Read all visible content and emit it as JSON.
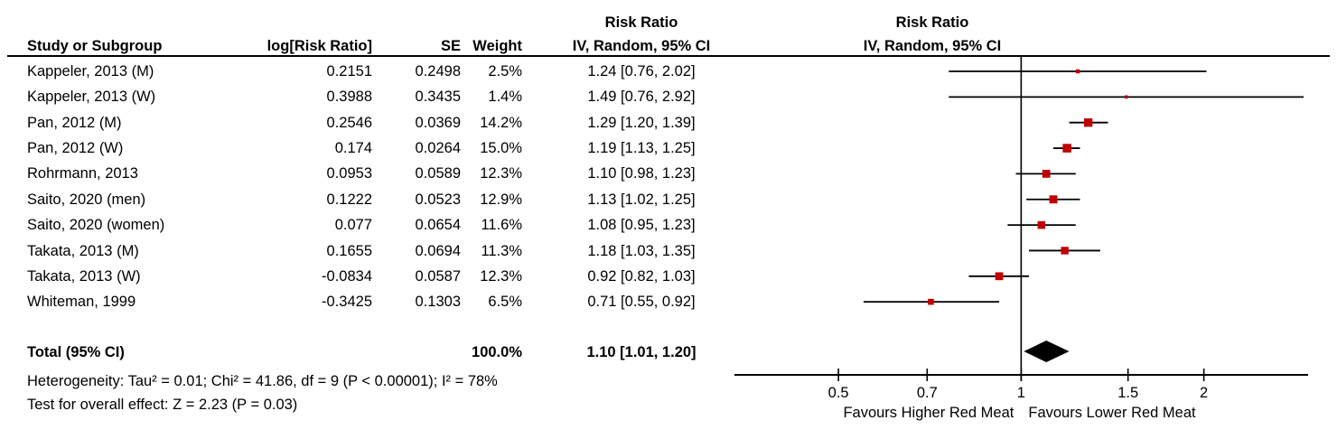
{
  "table": {
    "headers": {
      "study": "Study or Subgroup",
      "log_rr": "log[Risk Ratio]",
      "se": "SE",
      "weight": "Weight",
      "effect_title": "Risk Ratio",
      "effect_sub": "IV, Random, 95% CI"
    },
    "plot_headers": {
      "title": "Risk Ratio",
      "subtitle": "IV, Random, 95% CI"
    }
  },
  "chart_data": {
    "type": "forest",
    "x_scale": "log",
    "xlim": [
      0.337,
      2.97
    ],
    "ticks": [
      0.5,
      0.7,
      1,
      1.5,
      2
    ],
    "vline_at": 1,
    "marker_color": "#c00000",
    "line_color": "#000000",
    "studies": [
      {
        "name": "Kappeler, 2013 (M)",
        "log_rr": "0.2151",
        "se": "0.2498",
        "weight": "2.5%",
        "weight_num": 2.5,
        "ci_label": "1.24 [0.76, 2.02]",
        "rr": 1.24,
        "lo": 0.76,
        "hi": 2.02
      },
      {
        "name": "Kappeler, 2013 (W)",
        "log_rr": "0.3988",
        "se": "0.3435",
        "weight": "1.4%",
        "weight_num": 1.4,
        "ci_label": "1.49 [0.76, 2.92]",
        "rr": 1.49,
        "lo": 0.76,
        "hi": 2.92
      },
      {
        "name": "Pan, 2012 (M)",
        "log_rr": "0.2546",
        "se": "0.0369",
        "weight": "14.2%",
        "weight_num": 14.2,
        "ci_label": "1.29 [1.20, 1.39]",
        "rr": 1.29,
        "lo": 1.2,
        "hi": 1.39
      },
      {
        "name": "Pan, 2012 (W)",
        "log_rr": "0.174",
        "se": "0.0264",
        "weight": "15.0%",
        "weight_num": 15.0,
        "ci_label": "1.19 [1.13, 1.25]",
        "rr": 1.19,
        "lo": 1.13,
        "hi": 1.25
      },
      {
        "name": "Rohrmann, 2013",
        "log_rr": "0.0953",
        "se": "0.0589",
        "weight": "12.3%",
        "weight_num": 12.3,
        "ci_label": "1.10 [0.98, 1.23]",
        "rr": 1.1,
        "lo": 0.98,
        "hi": 1.23
      },
      {
        "name": "Saito, 2020 (men)",
        "log_rr": "0.1222",
        "se": "0.0523",
        "weight": "12.9%",
        "weight_num": 12.9,
        "ci_label": "1.13 [1.02, 1.25]",
        "rr": 1.13,
        "lo": 1.02,
        "hi": 1.25
      },
      {
        "name": "Saito, 2020 (women)",
        "log_rr": "0.077",
        "se": "0.0654",
        "weight": "11.6%",
        "weight_num": 11.6,
        "ci_label": "1.08 [0.95, 1.23]",
        "rr": 1.08,
        "lo": 0.95,
        "hi": 1.23
      },
      {
        "name": "Takata, 2013 (M)",
        "log_rr": "0.1655",
        "se": "0.0694",
        "weight": "11.3%",
        "weight_num": 11.3,
        "ci_label": "1.18 [1.03, 1.35]",
        "rr": 1.18,
        "lo": 1.03,
        "hi": 1.35
      },
      {
        "name": "Takata, 2013 (W)",
        "log_rr": "-0.0834",
        "se": "0.0587",
        "weight": "12.3%",
        "weight_num": 12.3,
        "ci_label": "0.92 [0.82, 1.03]",
        "rr": 0.92,
        "lo": 0.82,
        "hi": 1.03
      },
      {
        "name": "Whiteman, 1999",
        "log_rr": "-0.3425",
        "se": "0.1303",
        "weight": "6.5%",
        "weight_num": 6.5,
        "ci_label": "0.71 [0.55, 0.92]",
        "rr": 0.71,
        "lo": 0.55,
        "hi": 0.92
      }
    ],
    "total": {
      "label": "Total (95% CI)",
      "weight": "100.0%",
      "ci_label": "1.10 [1.01, 1.20]",
      "rr": 1.1,
      "lo": 1.01,
      "hi": 1.2
    },
    "footer": {
      "heterogeneity": "Heterogeneity: Tau² = 0.01; Chi² = 41.86, df = 9 (P < 0.00001); I² = 78%",
      "overall_effect": "Test for overall effect: Z = 2.23 (P = 0.03)"
    },
    "favours_left": "Favours Higher Red Meat",
    "favours_right": "Favours Lower Red Meat"
  }
}
